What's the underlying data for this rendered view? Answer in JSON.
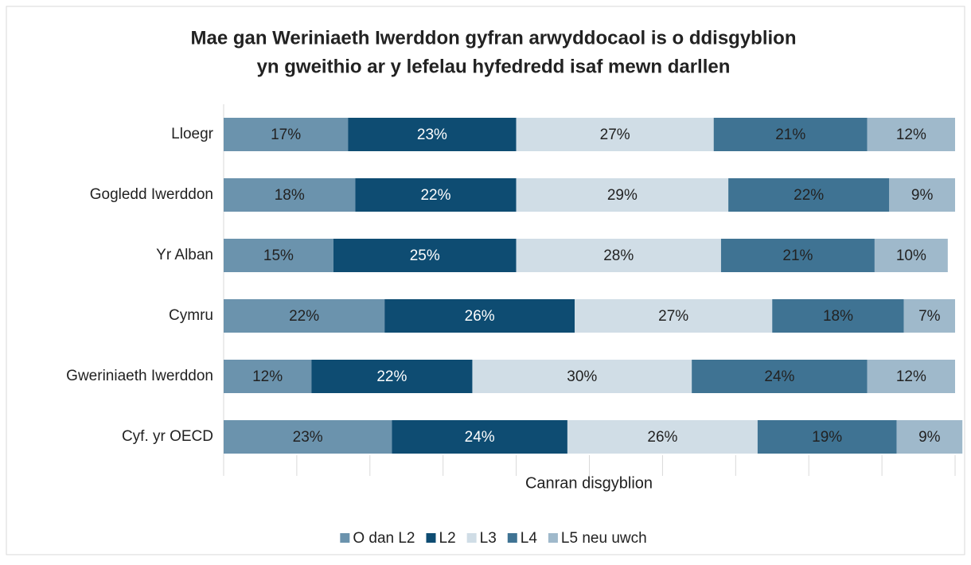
{
  "chart_data": {
    "type": "stacked-bar-horizontal",
    "title": [
      "Mae gan Weriniaeth Iwerddon gyfran arwyddocaol is o ddisgyblion",
      "yn gweithio ar y lefelau hyfedredd isaf mewn darllen"
    ],
    "xlabel": "Canran disgyblion",
    "categories": [
      "Lloegr",
      "Gogledd Iwerddon",
      "Yr Alban",
      "Cymru",
      "Gweriniaeth Iwerddon",
      "Cyf. yr OECD"
    ],
    "series": [
      {
        "name": "O dan L2",
        "color": "#6b93ad",
        "values": [
          17,
          18,
          15,
          22,
          12,
          23
        ],
        "value_labels": [
          "17%",
          "18%",
          "15%",
          "22%",
          "12%",
          "23%"
        ]
      },
      {
        "name": "L2",
        "color": "#0e4c72",
        "values": [
          23,
          22,
          25,
          26,
          22,
          24
        ],
        "value_labels": [
          "23%",
          "22%",
          "25%",
          "26%",
          "22%",
          "24%"
        ]
      },
      {
        "name": "L3",
        "color": "#d0dde6",
        "values": [
          27,
          29,
          28,
          27,
          30,
          26
        ],
        "value_labels": [
          "27%",
          "29%",
          "28%",
          "27%",
          "30%",
          "26%"
        ]
      },
      {
        "name": "L4",
        "color": "#3f7393",
        "values": [
          21,
          22,
          21,
          18,
          24,
          19
        ],
        "value_labels": [
          "21%",
          "22%",
          "21%",
          "18%",
          "24%",
          "19%"
        ]
      },
      {
        "name": "L5 neu uwch",
        "color": "#9fb9cb",
        "values": [
          12,
          9,
          10,
          7,
          12,
          9
        ],
        "value_labels": [
          "12%",
          "9%",
          "10%",
          "7%",
          "12%",
          "9%"
        ]
      }
    ],
    "xlim": [
      0,
      100
    ],
    "xticks": [
      0,
      10,
      20,
      30,
      40,
      50,
      60,
      70,
      80,
      90,
      100
    ],
    "legend": "bottom"
  }
}
